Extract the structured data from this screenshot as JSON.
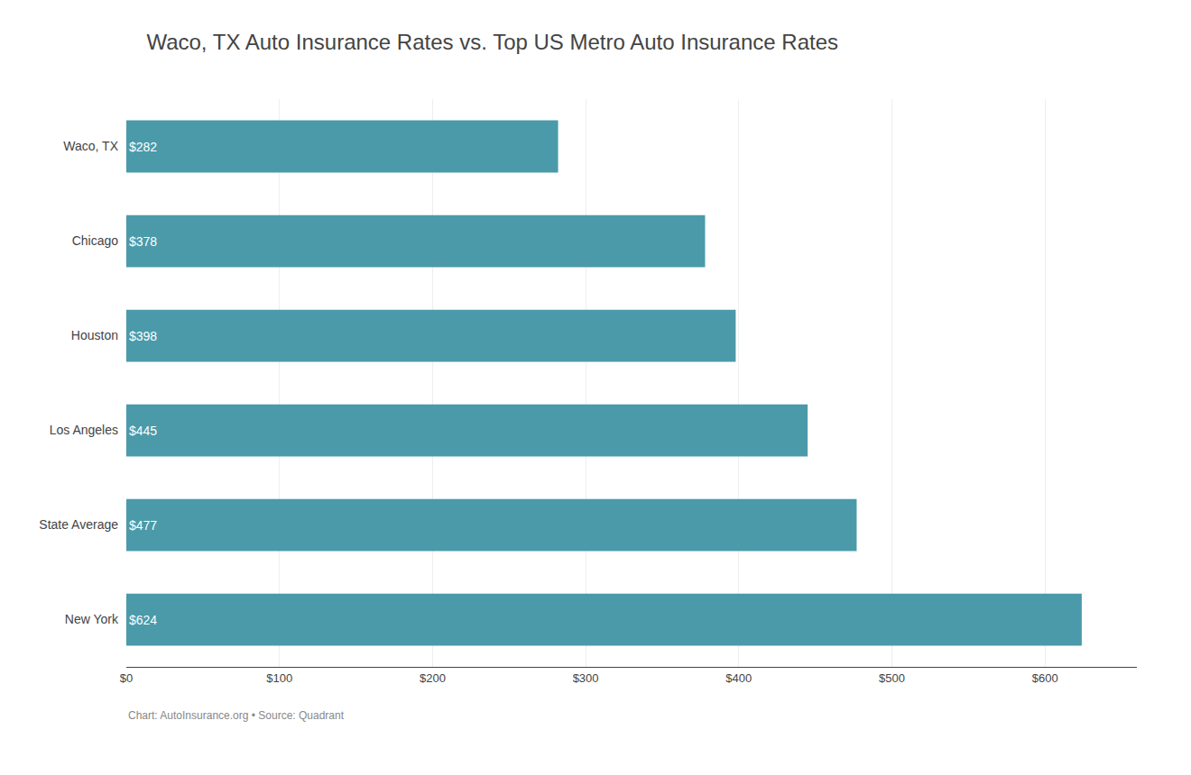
{
  "chart_data": {
    "type": "bar",
    "orientation": "horizontal",
    "title": "Waco, TX Auto Insurance Rates vs. Top US Metro Auto Insurance Rates",
    "categories": [
      "Waco, TX",
      "Chicago",
      "Houston",
      "Los Angeles",
      "State Average",
      "New York"
    ],
    "values": [
      282,
      378,
      398,
      445,
      477,
      624
    ],
    "value_labels": [
      "$282",
      "$378",
      "$398",
      "$445",
      "$477",
      "$624"
    ],
    "data_labels": true,
    "color": "#4a9aaa",
    "xlim": [
      0,
      660
    ],
    "xticks": [
      {
        "value": 0,
        "label": "$0"
      },
      {
        "value": 100,
        "label": "$100"
      },
      {
        "value": 200,
        "label": "$200"
      },
      {
        "value": 300,
        "label": "$300"
      },
      {
        "value": 400,
        "label": "$400"
      },
      {
        "value": 500,
        "label": "$500"
      },
      {
        "value": 600,
        "label": "$600"
      }
    ],
    "grid": true,
    "annotations": [
      "Chart: AutoInsurance.org • Source: Quadrant"
    ]
  }
}
